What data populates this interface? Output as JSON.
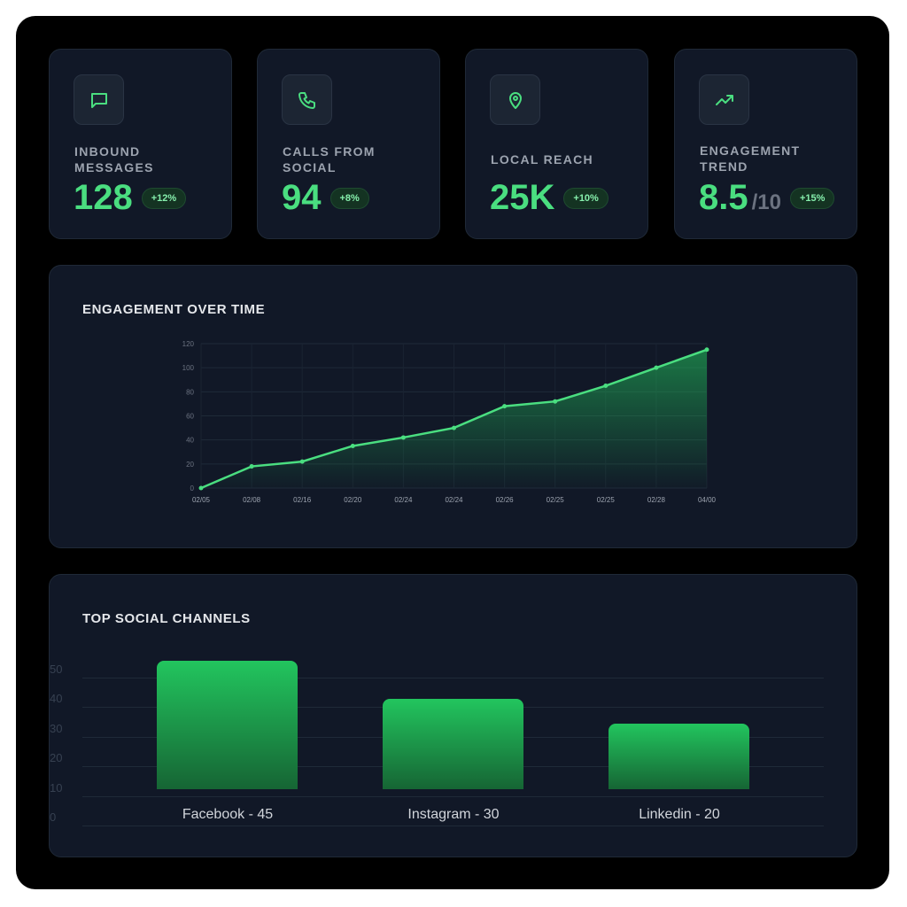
{
  "cards": [
    {
      "label_1": "INBOUND",
      "label_2": "MESSAGES",
      "value": "128",
      "badge": "+12%",
      "icon": "message-icon"
    },
    {
      "label_1": "CALLS FROM",
      "label_2": "SOCIAL",
      "value": "94",
      "badge": "+8%",
      "icon": "phone-icon"
    },
    {
      "label_1": "LOCAL REACH",
      "value": "25K",
      "badge": "+10%",
      "icon": "location-pin-icon"
    },
    {
      "label_1": "ENGAGEMENT",
      "label_2": "TREND",
      "value": "8.5",
      "suffix": "/10",
      "badge": "+15%",
      "icon": "trending-up-icon"
    }
  ],
  "colors": {
    "accent": "#4ade80",
    "panel": "#111827",
    "bar": "#22c55e"
  },
  "chart_data": [
    {
      "type": "area",
      "title": "ENGAGEMENT OVER TIME",
      "x": [
        "02/05",
        "02/08",
        "02/16",
        "02/20",
        "02/24",
        "02/24",
        "02/26",
        "02/25",
        "02/25",
        "02/28",
        "04/00"
      ],
      "values": [
        0,
        18,
        22,
        35,
        42,
        50,
        68,
        72,
        85,
        100,
        115
      ],
      "yticks": [
        "0",
        "20",
        "40",
        "60",
        "80",
        "100",
        "120"
      ],
      "ylim": [
        0,
        120
      ],
      "grid": true
    },
    {
      "type": "bar",
      "title": "TOP SOCIAL CHANNELS",
      "categories": [
        "Facebook - 45",
        "Instagram - 30",
        "Linkedin - 20"
      ],
      "values": [
        45,
        30,
        20
      ],
      "yticks": [
        "0",
        "10",
        "20",
        "30",
        "40",
        "50"
      ],
      "ylim": [
        0,
        50
      ],
      "grid": true
    }
  ]
}
